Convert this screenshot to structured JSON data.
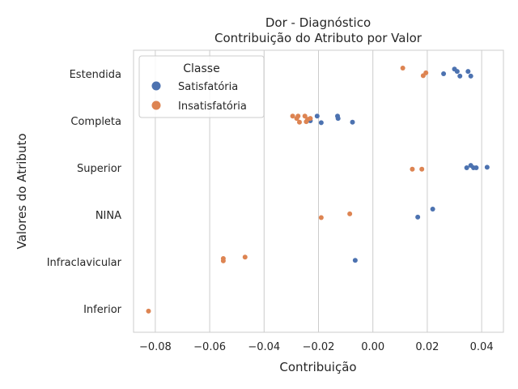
{
  "chart_data": {
    "type": "scatter",
    "title": "Dor - Diagnóstico",
    "subtitle": "Contribuição do Atributo por Valor",
    "xlabel": "Contribuição",
    "ylabel": "Valores do Atributo",
    "xlim": [
      -0.088,
      0.048
    ],
    "categories": [
      "Estendida",
      "Completa",
      "Superior",
      "NINA",
      "Infraclavicular",
      "Inferior"
    ],
    "x_ticks": [
      -0.08,
      -0.06,
      -0.04,
      -0.02,
      0.0,
      0.02,
      0.04
    ],
    "x_tick_labels": [
      "−0.08",
      "−0.06",
      "−0.04",
      "−0.02",
      "0.00",
      "0.02",
      "0.04"
    ],
    "grid": "vertical",
    "legend": {
      "title": "Classe",
      "placement": "top-left",
      "entries": [
        "Satisfatória",
        "Insatisfatória"
      ]
    },
    "colors": {
      "Satisfatória": "#4c72b0",
      "Insatisfatória": "#dd8452",
      "grid": "#cccccc",
      "text": "#262626"
    },
    "series": [
      {
        "name": "Satisfatória",
        "points": [
          {
            "category": "Estendida",
            "x": 0.026,
            "jitter": 0.0
          },
          {
            "category": "Estendida",
            "x": 0.03,
            "jitter": -0.1
          },
          {
            "category": "Estendida",
            "x": 0.031,
            "jitter": -0.05
          },
          {
            "category": "Estendida",
            "x": 0.032,
            "jitter": 0.05
          },
          {
            "category": "Estendida",
            "x": 0.035,
            "jitter": -0.05
          },
          {
            "category": "Estendida",
            "x": 0.036,
            "jitter": 0.05
          },
          {
            "category": "Completa",
            "x": -0.023,
            "jitter": 0.0
          },
          {
            "category": "Completa",
            "x": -0.0205,
            "jitter": -0.1
          },
          {
            "category": "Completa",
            "x": -0.019,
            "jitter": 0.04
          },
          {
            "category": "Completa",
            "x": -0.013,
            "jitter": -0.1
          },
          {
            "category": "Completa",
            "x": -0.0128,
            "jitter": -0.05
          },
          {
            "category": "Completa",
            "x": -0.0075,
            "jitter": 0.03
          },
          {
            "category": "Superior",
            "x": 0.0345,
            "jitter": 0.0
          },
          {
            "category": "Superior",
            "x": 0.036,
            "jitter": -0.05
          },
          {
            "category": "Superior",
            "x": 0.037,
            "jitter": 0.0
          },
          {
            "category": "Superior",
            "x": 0.038,
            "jitter": 0.0
          },
          {
            "category": "Superior",
            "x": 0.042,
            "jitter": -0.01
          },
          {
            "category": "NINA",
            "x": 0.022,
            "jitter": -0.12
          },
          {
            "category": "NINA",
            "x": 0.0165,
            "jitter": 0.05
          },
          {
            "category": "Infraclavicular",
            "x": -0.0065,
            "jitter": -0.03
          }
        ]
      },
      {
        "name": "Insatisfatória",
        "points": [
          {
            "category": "Estendida",
            "x": 0.011,
            "jitter": -0.12
          },
          {
            "category": "Estendida",
            "x": 0.0195,
            "jitter": -0.02
          },
          {
            "category": "Estendida",
            "x": 0.0185,
            "jitter": 0.04
          },
          {
            "category": "Completa",
            "x": -0.0295,
            "jitter": -0.1
          },
          {
            "category": "Completa",
            "x": -0.028,
            "jitter": -0.05
          },
          {
            "category": "Completa",
            "x": -0.0275,
            "jitter": -0.1
          },
          {
            "category": "Completa",
            "x": -0.027,
            "jitter": 0.03
          },
          {
            "category": "Completa",
            "x": -0.025,
            "jitter": -0.1
          },
          {
            "category": "Completa",
            "x": -0.024,
            "jitter": -0.03
          },
          {
            "category": "Completa",
            "x": -0.0245,
            "jitter": 0.02
          },
          {
            "category": "Completa",
            "x": -0.023,
            "jitter": -0.05
          },
          {
            "category": "Superior",
            "x": 0.0145,
            "jitter": 0.03
          },
          {
            "category": "Superior",
            "x": 0.018,
            "jitter": 0.03
          },
          {
            "category": "NINA",
            "x": -0.0085,
            "jitter": -0.02
          },
          {
            "category": "NINA",
            "x": -0.019,
            "jitter": 0.06
          },
          {
            "category": "Infraclavicular",
            "x": -0.055,
            "jitter": -0.07
          },
          {
            "category": "Infraclavicular",
            "x": -0.055,
            "jitter": -0.02
          },
          {
            "category": "Infraclavicular",
            "x": -0.047,
            "jitter": -0.1
          },
          {
            "category": "Inferior",
            "x": -0.0825,
            "jitter": 0.05
          }
        ]
      }
    ]
  }
}
